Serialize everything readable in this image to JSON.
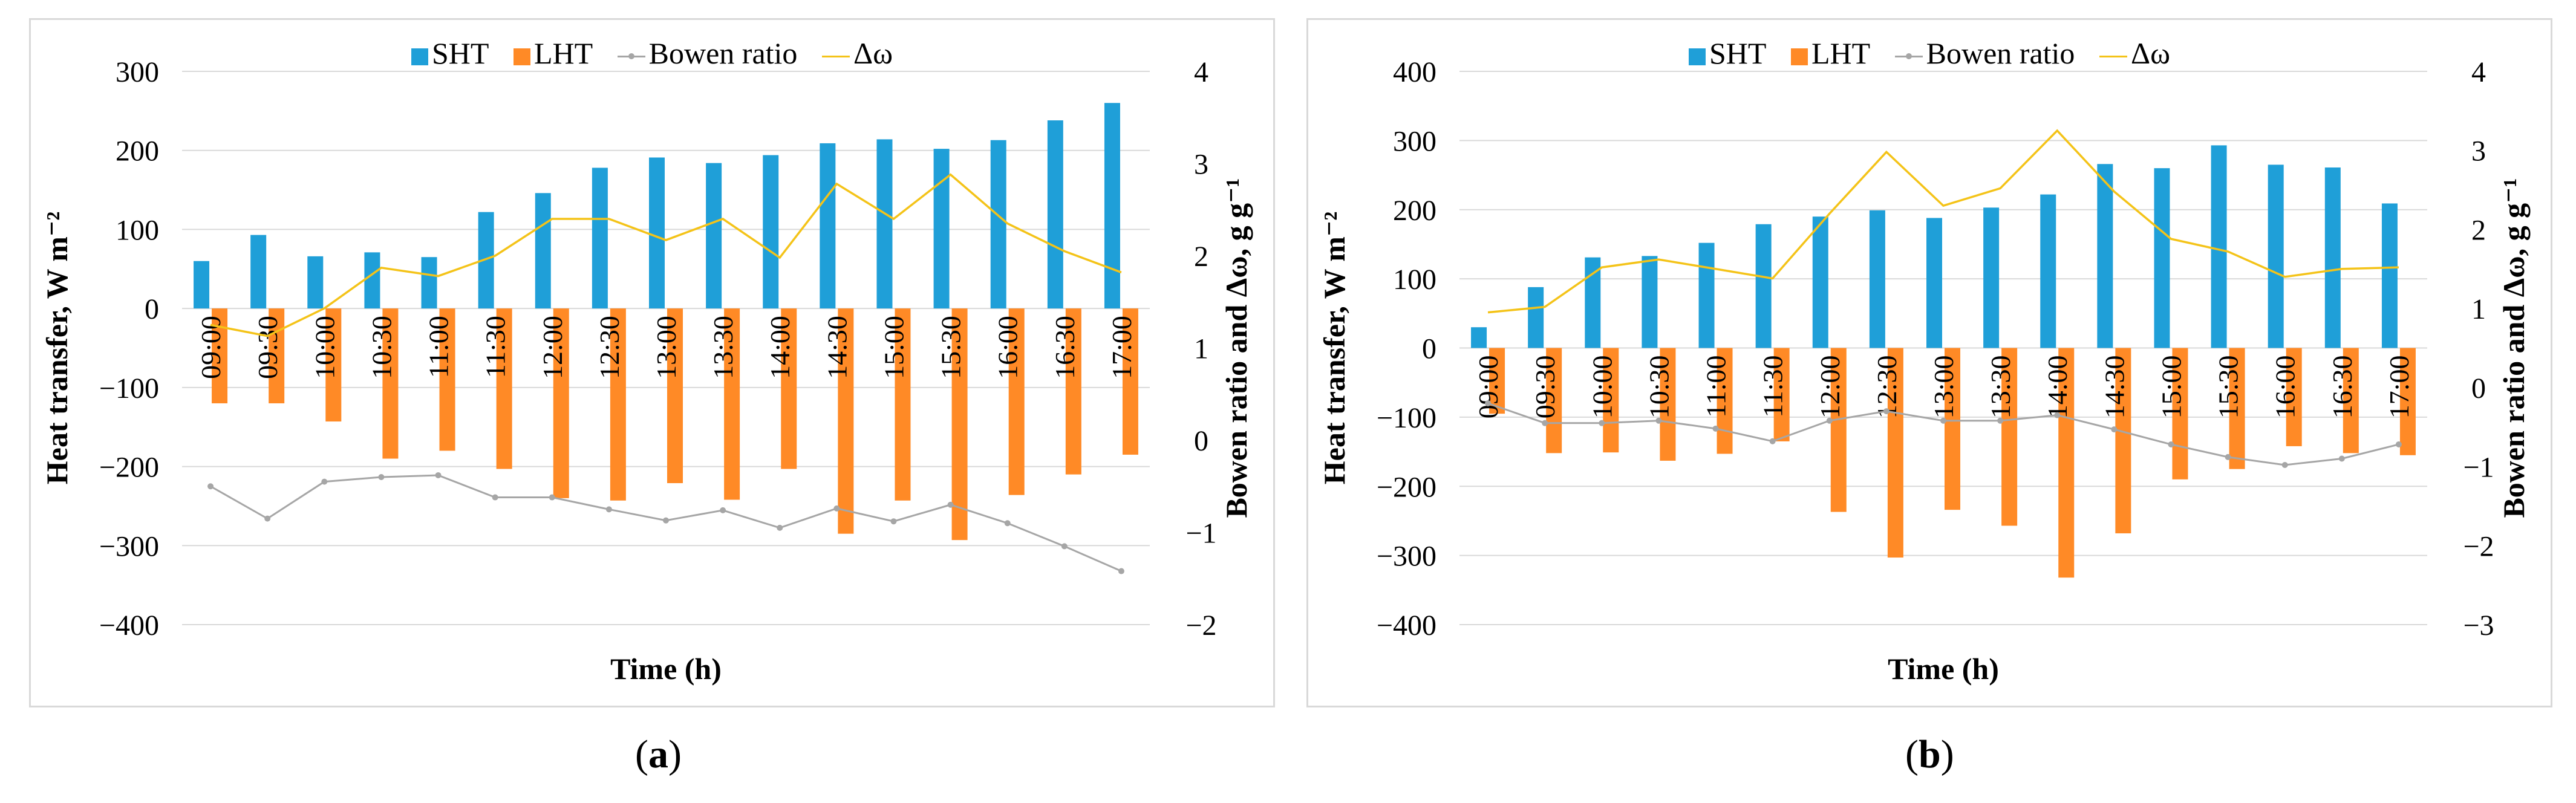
{
  "legend": {
    "sht": "SHT",
    "lht": "LHT",
    "bowen": "Bowen ratio",
    "domega": "Δω"
  },
  "colors": {
    "sht": "#1f9fd8",
    "lht": "#ff8a26",
    "bowen": "#a6a6a6",
    "domega": "#f4c318",
    "grid": "#d9d9d9"
  },
  "captions": {
    "a_letter": "a",
    "b_letter": "b"
  },
  "chart_data": [
    {
      "type": "bar",
      "panel": "a",
      "xlabel": "Time (h)",
      "ylabel": "Heat transfer, W m⁻²",
      "y2label": "Bowen ratio and Δω, g g⁻¹",
      "ylim": [
        -400,
        300
      ],
      "yticks": [
        300,
        200,
        100,
        0,
        -100,
        -200,
        -300,
        -400
      ],
      "y2lim": [
        -2,
        4
      ],
      "y2ticks": [
        4,
        3,
        2,
        1,
        0,
        -1,
        -2
      ],
      "categories": [
        "09:00",
        "09:30",
        "10:00",
        "10:30",
        "11:00",
        "11:30",
        "12:00",
        "12:30",
        "13:00",
        "13:30",
        "14:00",
        "14:30",
        "15:00",
        "15:30",
        "16:00",
        "16:30",
        "17:00"
      ],
      "series": [
        {
          "name": "SHT",
          "axis": "left",
          "kind": "bar",
          "values": [
            60,
            93,
            66,
            71,
            65,
            122,
            146,
            178,
            191,
            184,
            194,
            209,
            214,
            202,
            213,
            238,
            260
          ]
        },
        {
          "name": "LHT",
          "axis": "left",
          "kind": "bar",
          "values": [
            -120,
            -120,
            -143,
            -190,
            -180,
            -203,
            -240,
            -243,
            -221,
            -242,
            -203,
            -285,
            -243,
            -293,
            -236,
            -210,
            -185
          ]
        },
        {
          "name": "Bowen ratio",
          "axis": "right",
          "kind": "line",
          "values": [
            -0.5,
            -0.85,
            -0.45,
            -0.4,
            -0.38,
            -0.62,
            -0.62,
            -0.75,
            -0.87,
            -0.76,
            -0.95,
            -0.74,
            -0.88,
            -0.7,
            -0.9,
            -1.15,
            -1.42
          ]
        },
        {
          "name": "Δω",
          "axis": "right",
          "kind": "line",
          "values": [
            1.25,
            1.13,
            1.43,
            1.87,
            1.78,
            2.0,
            2.4,
            2.4,
            2.17,
            2.4,
            1.98,
            2.78,
            2.4,
            2.88,
            2.35,
            2.05,
            1.82
          ]
        }
      ]
    },
    {
      "type": "bar",
      "panel": "b",
      "xlabel": "Time (h)",
      "ylabel": "Heat transfer, W m⁻²",
      "y2label": "Bowen ratio and Δω, g g⁻¹",
      "ylim": [
        -400,
        400
      ],
      "yticks": [
        400,
        300,
        200,
        100,
        0,
        -100,
        -200,
        -300,
        -400
      ],
      "y2lim": [
        -3,
        4
      ],
      "y2ticks": [
        4,
        3,
        2,
        1,
        0,
        -1,
        -2,
        -3
      ],
      "categories": [
        "09:00",
        "09:30",
        "10:00",
        "10:30",
        "11:00",
        "11:30",
        "12:00",
        "12:30",
        "13:00",
        "13:30",
        "14:00",
        "14:30",
        "15:00",
        "15:30",
        "16:00",
        "16:30",
        "17:00"
      ],
      "series": [
        {
          "name": "SHT",
          "axis": "left",
          "kind": "bar",
          "values": [
            30,
            88,
            131,
            133,
            152,
            179,
            190,
            199,
            188,
            203,
            222,
            266,
            260,
            293,
            265,
            261,
            209
          ]
        },
        {
          "name": "LHT",
          "axis": "left",
          "kind": "bar",
          "values": [
            -95,
            -152,
            -151,
            -163,
            -153,
            -135,
            -237,
            -303,
            -234,
            -257,
            -332,
            -268,
            -190,
            -175,
            -142,
            -152,
            -155
          ]
        },
        {
          "name": "Bowen ratio",
          "axis": "right",
          "kind": "line",
          "values": [
            -0.2,
            -0.45,
            -0.45,
            -0.42,
            -0.52,
            -0.68,
            -0.42,
            -0.3,
            -0.42,
            -0.42,
            -0.35,
            -0.53,
            -0.72,
            -0.88,
            -0.98,
            -0.9,
            -0.72
          ]
        },
        {
          "name": "Δω",
          "axis": "right",
          "kind": "line",
          "values": [
            0.95,
            1.02,
            1.52,
            1.62,
            1.5,
            1.38,
            2.2,
            2.98,
            2.3,
            2.52,
            3.25,
            2.48,
            1.88,
            1.72,
            1.4,
            1.5,
            1.52
          ]
        }
      ]
    }
  ]
}
